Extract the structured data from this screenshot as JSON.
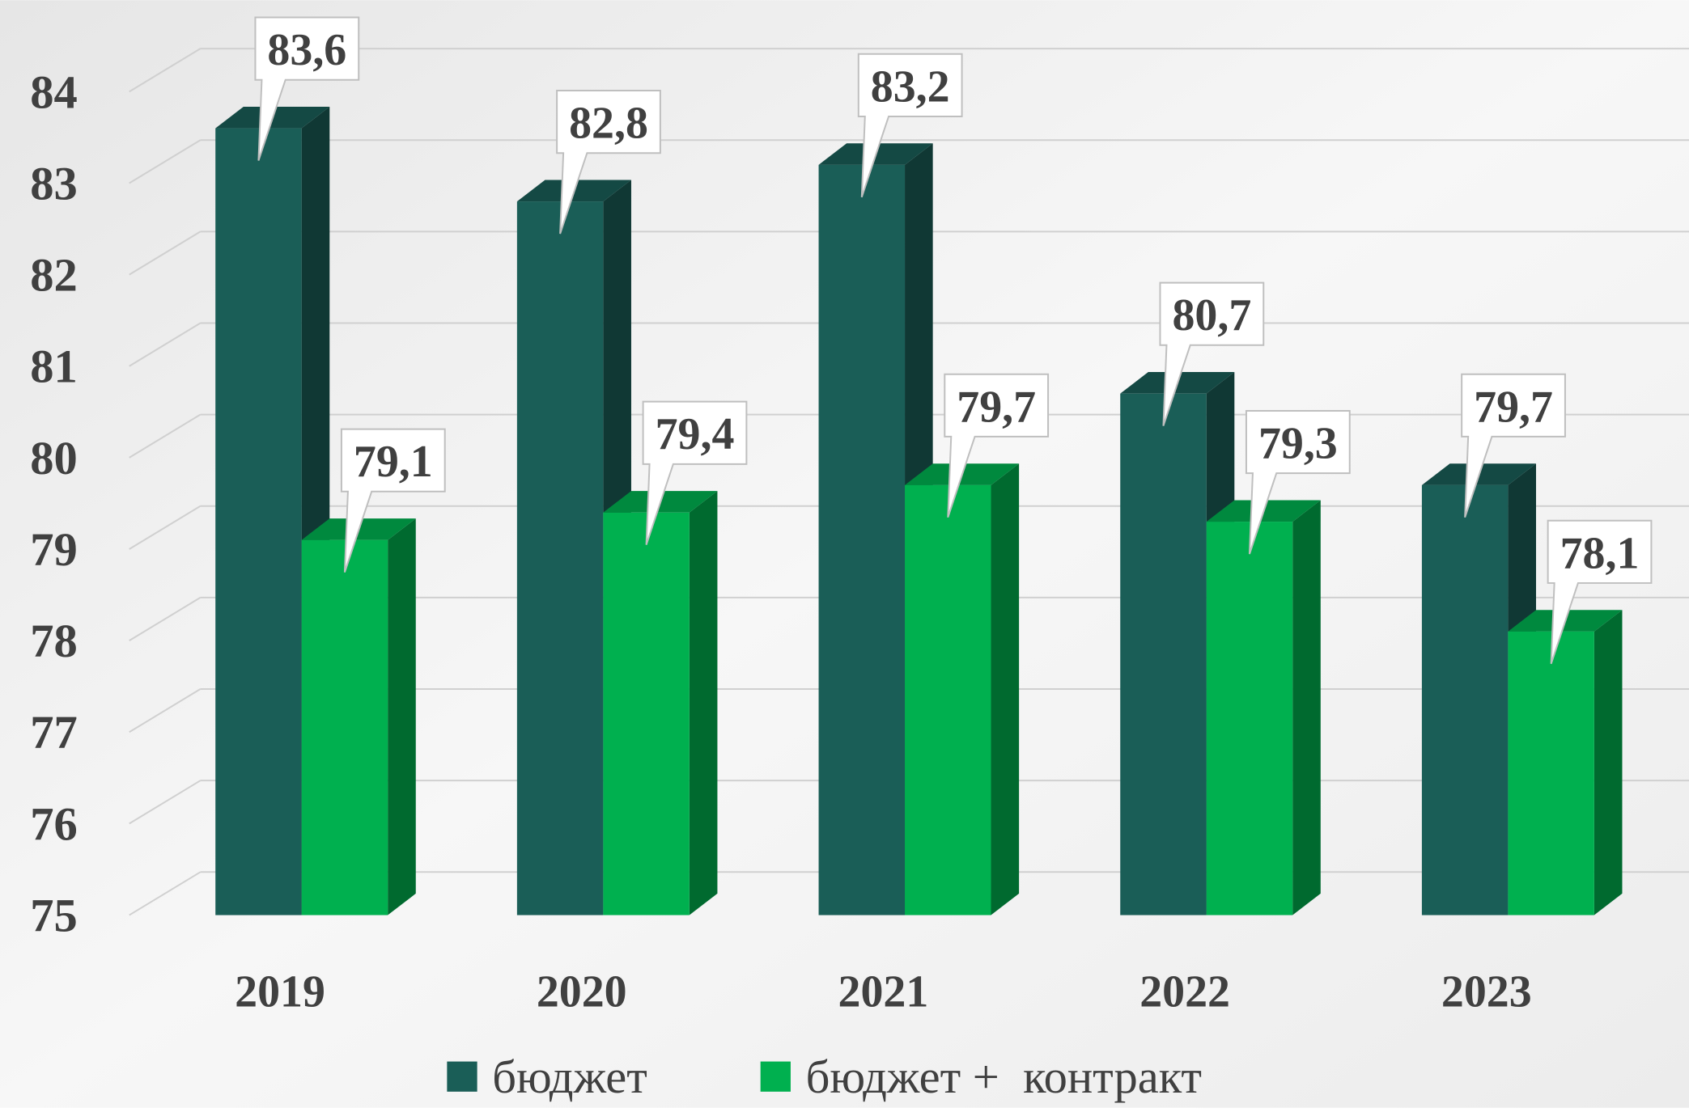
{
  "chart_data": {
    "type": "bar3d",
    "categories": [
      "2019",
      "2020",
      "2021",
      "2022",
      "2023"
    ],
    "series": [
      {
        "name": "бюджет",
        "color": "#1a5e57",
        "values": [
          83.6,
          82.8,
          83.2,
          80.7,
          79.7
        ],
        "value_labels": [
          "83,6",
          "82,8",
          "83,2",
          "80,7",
          "79,7"
        ]
      },
      {
        "name": "бюджет +  контракт",
        "color": "#00b04f",
        "values": [
          79.1,
          79.4,
          79.7,
          79.3,
          78.1
        ],
        "value_labels": [
          "79,1",
          "79,4",
          "79,7",
          "79,3",
          "78,1"
        ]
      }
    ],
    "ylim": [
      75,
      84
    ],
    "yticks": [
      75,
      76,
      77,
      78,
      79,
      80,
      81,
      82,
      83,
      84
    ],
    "grid": true,
    "legend": "bottom"
  }
}
